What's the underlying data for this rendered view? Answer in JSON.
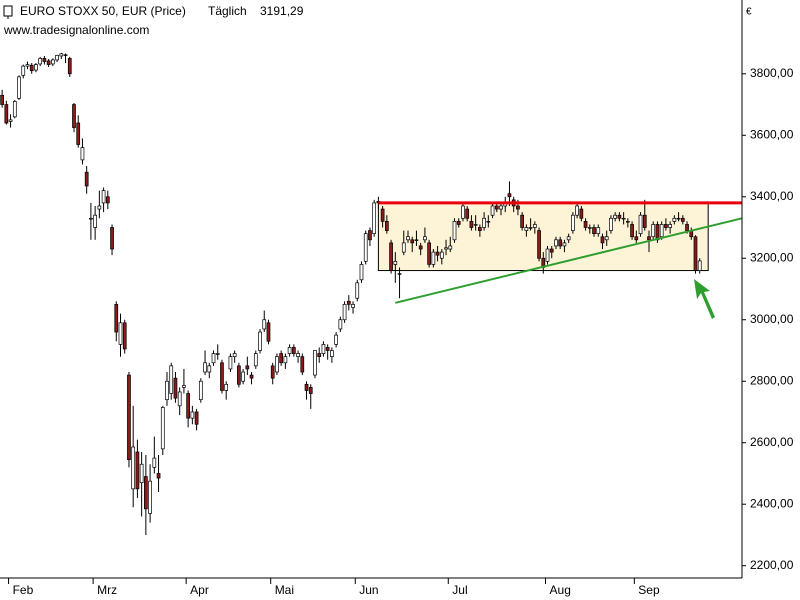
{
  "chart_data": {
    "type": "candlestick",
    "title": "EURO STOXX 50, EUR (Price)",
    "interval": "Täglich",
    "last_price": "3191,29",
    "source": "www.tradesignalonline.com",
    "currency": "€",
    "up_color": "#ffffff",
    "down_color": "#8b1a1a",
    "last_price_color": "#2eaa2e",
    "xlim": [
      -0.5,
      175
    ],
    "ylim": [
      2160,
      4040
    ],
    "yticks": [
      {
        "value": 2200,
        "label": "2200,00"
      },
      {
        "value": 2400,
        "label": "2400,00"
      },
      {
        "value": 2600,
        "label": "2600,00"
      },
      {
        "value": 2800,
        "label": "2800,00"
      },
      {
        "value": 3000,
        "label": "3000,00"
      },
      {
        "value": 3200,
        "label": "3200,00"
      },
      {
        "value": 3400,
        "label": "3400,00"
      },
      {
        "value": 3600,
        "label": "3600,00"
      },
      {
        "value": 3800,
        "label": "3800,00"
      }
    ],
    "categories": [
      null,
      null,
      "Feb",
      null,
      null,
      null,
      null,
      null,
      null,
      null,
      null,
      null,
      null,
      null,
      null,
      null,
      null,
      null,
      null,
      null,
      null,
      null,
      "Mrz",
      null,
      null,
      null,
      null,
      null,
      null,
      null,
      null,
      null,
      null,
      null,
      null,
      null,
      null,
      null,
      null,
      null,
      null,
      null,
      null,
      null,
      "Apr",
      null,
      null,
      null,
      null,
      null,
      null,
      null,
      null,
      null,
      null,
      null,
      null,
      null,
      null,
      null,
      null,
      null,
      null,
      null,
      "Mai",
      null,
      null,
      null,
      null,
      null,
      null,
      null,
      null,
      null,
      null,
      null,
      null,
      null,
      null,
      null,
      null,
      null,
      null,
      null,
      "Jun",
      null,
      null,
      null,
      null,
      null,
      null,
      null,
      null,
      null,
      null,
      null,
      null,
      null,
      null,
      null,
      null,
      null,
      null,
      null,
      null,
      null,
      "Jul",
      null,
      null,
      null,
      null,
      null,
      null,
      null,
      null,
      null,
      null,
      null,
      null,
      null,
      null,
      null,
      null,
      null,
      null,
      null,
      null,
      null,
      null,
      "Aug",
      null,
      null,
      null,
      null,
      null,
      null,
      null,
      null,
      null,
      null,
      null,
      null,
      null,
      null,
      null,
      null,
      null,
      null,
      null,
      null,
      "Sep",
      null,
      null,
      null,
      null,
      null,
      null,
      null,
      null,
      null,
      null,
      null,
      null,
      null,
      null,
      null
    ],
    "candles": [
      [
        3730,
        3748,
        3690,
        3700
      ],
      [
        3700,
        3712,
        3635,
        3640
      ],
      [
        3645,
        3668,
        3625,
        3650
      ],
      [
        3660,
        3715,
        3655,
        3710
      ],
      [
        3720,
        3795,
        3715,
        3790
      ],
      [
        3795,
        3830,
        3785,
        3825
      ],
      [
        3825,
        3840,
        3815,
        3830
      ],
      [
        3828,
        3835,
        3800,
        3810
      ],
      [
        3812,
        3835,
        3805,
        3830
      ],
      [
        3832,
        3855,
        3825,
        3850
      ],
      [
        3850,
        3858,
        3830,
        3840
      ],
      [
        3842,
        3848,
        3822,
        3830
      ],
      [
        3832,
        3850,
        3825,
        3845
      ],
      [
        3845,
        3862,
        3838,
        3860
      ],
      [
        3858,
        3868,
        3848,
        3865
      ],
      [
        3862,
        3866,
        3835,
        3860
      ],
      [
        3850,
        3855,
        3790,
        3800
      ],
      [
        3700,
        3705,
        3610,
        3625
      ],
      [
        3640,
        3665,
        3560,
        3570
      ],
      [
        3520,
        3590,
        3505,
        3560
      ],
      [
        3480,
        3500,
        3410,
        3435
      ],
      [
        3330,
        3380,
        3260,
        3330
      ],
      [
        3300,
        3370,
        3260,
        3340
      ],
      [
        3360,
        3420,
        3330,
        3370
      ],
      [
        3380,
        3430,
        3350,
        3420
      ],
      [
        3400,
        3420,
        3360,
        3380
      ],
      [
        3300,
        3310,
        3210,
        3230
      ],
      [
        3050,
        3060,
        2930,
        2960
      ],
      [
        2920,
        3020,
        2880,
        2990
      ],
      [
        2990,
        3000,
        2890,
        2905
      ],
      [
        2820,
        2830,
        2520,
        2545
      ],
      [
        2450,
        2720,
        2390,
        2586
      ],
      [
        2570,
        2610,
        2420,
        2450
      ],
      [
        2470,
        2570,
        2360,
        2530
      ],
      [
        2490,
        2560,
        2300,
        2385
      ],
      [
        2370,
        2530,
        2340,
        2475
      ],
      [
        2520,
        2620,
        2500,
        2550
      ],
      [
        2500,
        2560,
        2440,
        2485
      ],
      [
        2580,
        2720,
        2560,
        2715
      ],
      [
        2740,
        2830,
        2720,
        2800
      ],
      [
        2760,
        2860,
        2740,
        2850
      ],
      [
        2810,
        2830,
        2730,
        2745
      ],
      [
        2720,
        2780,
        2690,
        2765
      ],
      [
        2780,
        2840,
        2760,
        2786
      ],
      [
        2760,
        2770,
        2650,
        2680
      ],
      [
        2680,
        2720,
        2660,
        2700
      ],
      [
        2700,
        2710,
        2640,
        2660
      ],
      [
        2740,
        2810,
        2730,
        2800
      ],
      [
        2830,
        2900,
        2820,
        2860
      ],
      [
        2830,
        2860,
        2810,
        2850
      ],
      [
        2860,
        2900,
        2850,
        2890
      ],
      [
        2890,
        2920,
        2870,
        2890
      ],
      [
        2860,
        2870,
        2760,
        2770
      ],
      [
        2770,
        2800,
        2740,
        2790
      ],
      [
        2840,
        2890,
        2830,
        2880
      ],
      [
        2880,
        2900,
        2860,
        2890
      ],
      [
        2850,
        2860,
        2780,
        2790
      ],
      [
        2800,
        2840,
        2790,
        2830
      ],
      [
        2850,
        2880,
        2820,
        2840
      ],
      [
        2820,
        2830,
        2790,
        2810
      ],
      [
        2850,
        2900,
        2840,
        2890
      ],
      [
        2900,
        2970,
        2890,
        2960
      ],
      [
        2970,
        3030,
        2960,
        3000
      ],
      [
        2990,
        3000,
        2920,
        2930
      ],
      [
        2850,
        2860,
        2790,
        2810
      ],
      [
        2830,
        2890,
        2820,
        2880
      ],
      [
        2890,
        2900,
        2850,
        2860
      ],
      [
        2860,
        2890,
        2840,
        2880
      ],
      [
        2890,
        2920,
        2880,
        2910
      ],
      [
        2910,
        2920,
        2880,
        2890
      ],
      [
        2880,
        2900,
        2860,
        2890
      ],
      [
        2880,
        2890,
        2820,
        2830
      ],
      [
        2790,
        2800,
        2740,
        2770
      ],
      [
        2780,
        2790,
        2710,
        2760
      ],
      [
        2820,
        2900,
        2810,
        2900
      ],
      [
        2890,
        2910,
        2860,
        2880
      ],
      [
        2890,
        2930,
        2880,
        2920
      ],
      [
        2910,
        2920,
        2870,
        2900
      ],
      [
        2880,
        2910,
        2860,
        2900
      ],
      [
        2920,
        2960,
        2910,
        2950
      ],
      [
        2970,
        3010,
        2960,
        3000
      ],
      [
        3000,
        3060,
        2990,
        3050
      ],
      [
        3060,
        3080,
        3030,
        3050
      ],
      [
        3040,
        3060,
        3020,
        3050
      ],
      [
        3070,
        3130,
        3060,
        3120
      ],
      [
        3130,
        3190,
        3120,
        3180
      ],
      [
        3190,
        3290,
        3180,
        3280
      ],
      [
        3290,
        3300,
        3240,
        3260
      ],
      [
        3280,
        3390,
        3270,
        3380
      ],
      [
        3385,
        3400,
        3360,
        3380
      ],
      [
        3360,
        3370,
        3300,
        3320
      ],
      [
        3320,
        3340,
        3280,
        3290
      ],
      [
        3250,
        3260,
        3150,
        3160
      ],
      [
        3180,
        3220,
        3120,
        3190
      ],
      [
        3150,
        3170,
        3070,
        3150
      ],
      [
        3220,
        3290,
        3210,
        3250
      ],
      [
        3260,
        3290,
        3250,
        3270
      ],
      [
        3260,
        3270,
        3220,
        3250
      ],
      [
        3260,
        3290,
        3240,
        3260
      ],
      [
        3240,
        3250,
        3210,
        3230
      ],
      [
        3260,
        3300,
        3250,
        3270
      ],
      [
        3250,
        3260,
        3170,
        3180
      ],
      [
        3180,
        3230,
        3170,
        3220
      ],
      [
        3220,
        3240,
        3190,
        3210
      ],
      [
        3200,
        3230,
        3180,
        3220
      ],
      [
        3230,
        3260,
        3210,
        3234
      ],
      [
        3230,
        3270,
        3220,
        3240
      ],
      [
        3260,
        3330,
        3250,
        3320
      ],
      [
        3320,
        3330,
        3300,
        3310
      ],
      [
        3330,
        3380,
        3320,
        3370
      ],
      [
        3360,
        3370,
        3320,
        3330
      ],
      [
        3320,
        3340,
        3290,
        3300
      ],
      [
        3310,
        3340,
        3290,
        3310
      ],
      [
        3300,
        3310,
        3270,
        3290
      ],
      [
        3300,
        3350,
        3290,
        3330
      ],
      [
        3320,
        3340,
        3300,
        3320
      ],
      [
        3340,
        3380,
        3330,
        3370
      ],
      [
        3370,
        3380,
        3350,
        3360
      ],
      [
        3360,
        3380,
        3340,
        3370
      ],
      [
        3370,
        3400,
        3350,
        3380
      ],
      [
        3410,
        3450,
        3370,
        3400
      ],
      [
        3390,
        3400,
        3350,
        3370
      ],
      [
        3370,
        3390,
        3340,
        3360
      ],
      [
        3340,
        3350,
        3290,
        3300
      ],
      [
        3290,
        3310,
        3270,
        3300
      ],
      [
        3300,
        3330,
        3290,
        3300
      ],
      [
        3300,
        3320,
        3280,
        3310
      ],
      [
        3290,
        3300,
        3190,
        3200
      ],
      [
        3200,
        3220,
        3150,
        3170
      ],
      [
        3190,
        3240,
        3180,
        3230
      ],
      [
        3230,
        3240,
        3200,
        3220
      ],
      [
        3240,
        3270,
        3230,
        3260
      ],
      [
        3260,
        3270,
        3230,
        3240
      ],
      [
        3240,
        3260,
        3220,
        3250
      ],
      [
        3260,
        3280,
        3250,
        3270
      ],
      [
        3290,
        3350,
        3280,
        3340
      ],
      [
        3340,
        3380,
        3330,
        3370
      ],
      [
        3360,
        3370,
        3320,
        3330
      ],
      [
        3320,
        3330,
        3290,
        3300
      ],
      [
        3300,
        3310,
        3280,
        3300
      ],
      [
        3300,
        3310,
        3270,
        3280
      ],
      [
        3280,
        3310,
        3270,
        3300
      ],
      [
        3270,
        3280,
        3230,
        3250
      ],
      [
        3260,
        3290,
        3240,
        3270
      ],
      [
        3290,
        3340,
        3280,
        3330
      ],
      [
        3330,
        3350,
        3320,
        3340
      ],
      [
        3340,
        3350,
        3320,
        3330
      ],
      [
        3330,
        3350,
        3310,
        3330
      ],
      [
        3320,
        3330,
        3300,
        3320
      ],
      [
        3310,
        3320,
        3260,
        3270
      ],
      [
        3270,
        3290,
        3250,
        3260
      ],
      [
        3280,
        3350,
        3270,
        3340
      ],
      [
        3340,
        3390,
        3290,
        3300
      ],
      [
        3270,
        3290,
        3220,
        3260
      ],
      [
        3270,
        3320,
        3260,
        3310
      ],
      [
        3310,
        3320,
        3250,
        3260
      ],
      [
        3270,
        3320,
        3260,
        3310
      ],
      [
        3310,
        3330,
        3290,
        3300
      ],
      [
        3300,
        3320,
        3280,
        3310
      ],
      [
        3320,
        3340,
        3310,
        3330
      ],
      [
        3330,
        3350,
        3320,
        3330
      ],
      [
        3330,
        3340,
        3310,
        3320
      ],
      [
        3310,
        3320,
        3280,
        3290
      ],
      [
        3290,
        3300,
        3260,
        3270
      ],
      [
        3270,
        3275,
        3150,
        3160
      ],
      [
        3160,
        3200,
        3150,
        3191.29
      ]
    ],
    "overlays": [
      {
        "type": "rect",
        "x": [
          89,
          167
        ],
        "y": [
          3160,
          3380
        ],
        "fill": "#fdf3d6",
        "stroke": "#000000"
      },
      {
        "type": "line",
        "x": [
          89,
          175
        ],
        "y": [
          3380,
          3380
        ],
        "color": "#e8000b",
        "width": 3
      },
      {
        "type": "line",
        "x": [
          93,
          175
        ],
        "y": [
          3055,
          3330
        ],
        "color": "#2e9e2e",
        "width": 2
      }
    ]
  }
}
